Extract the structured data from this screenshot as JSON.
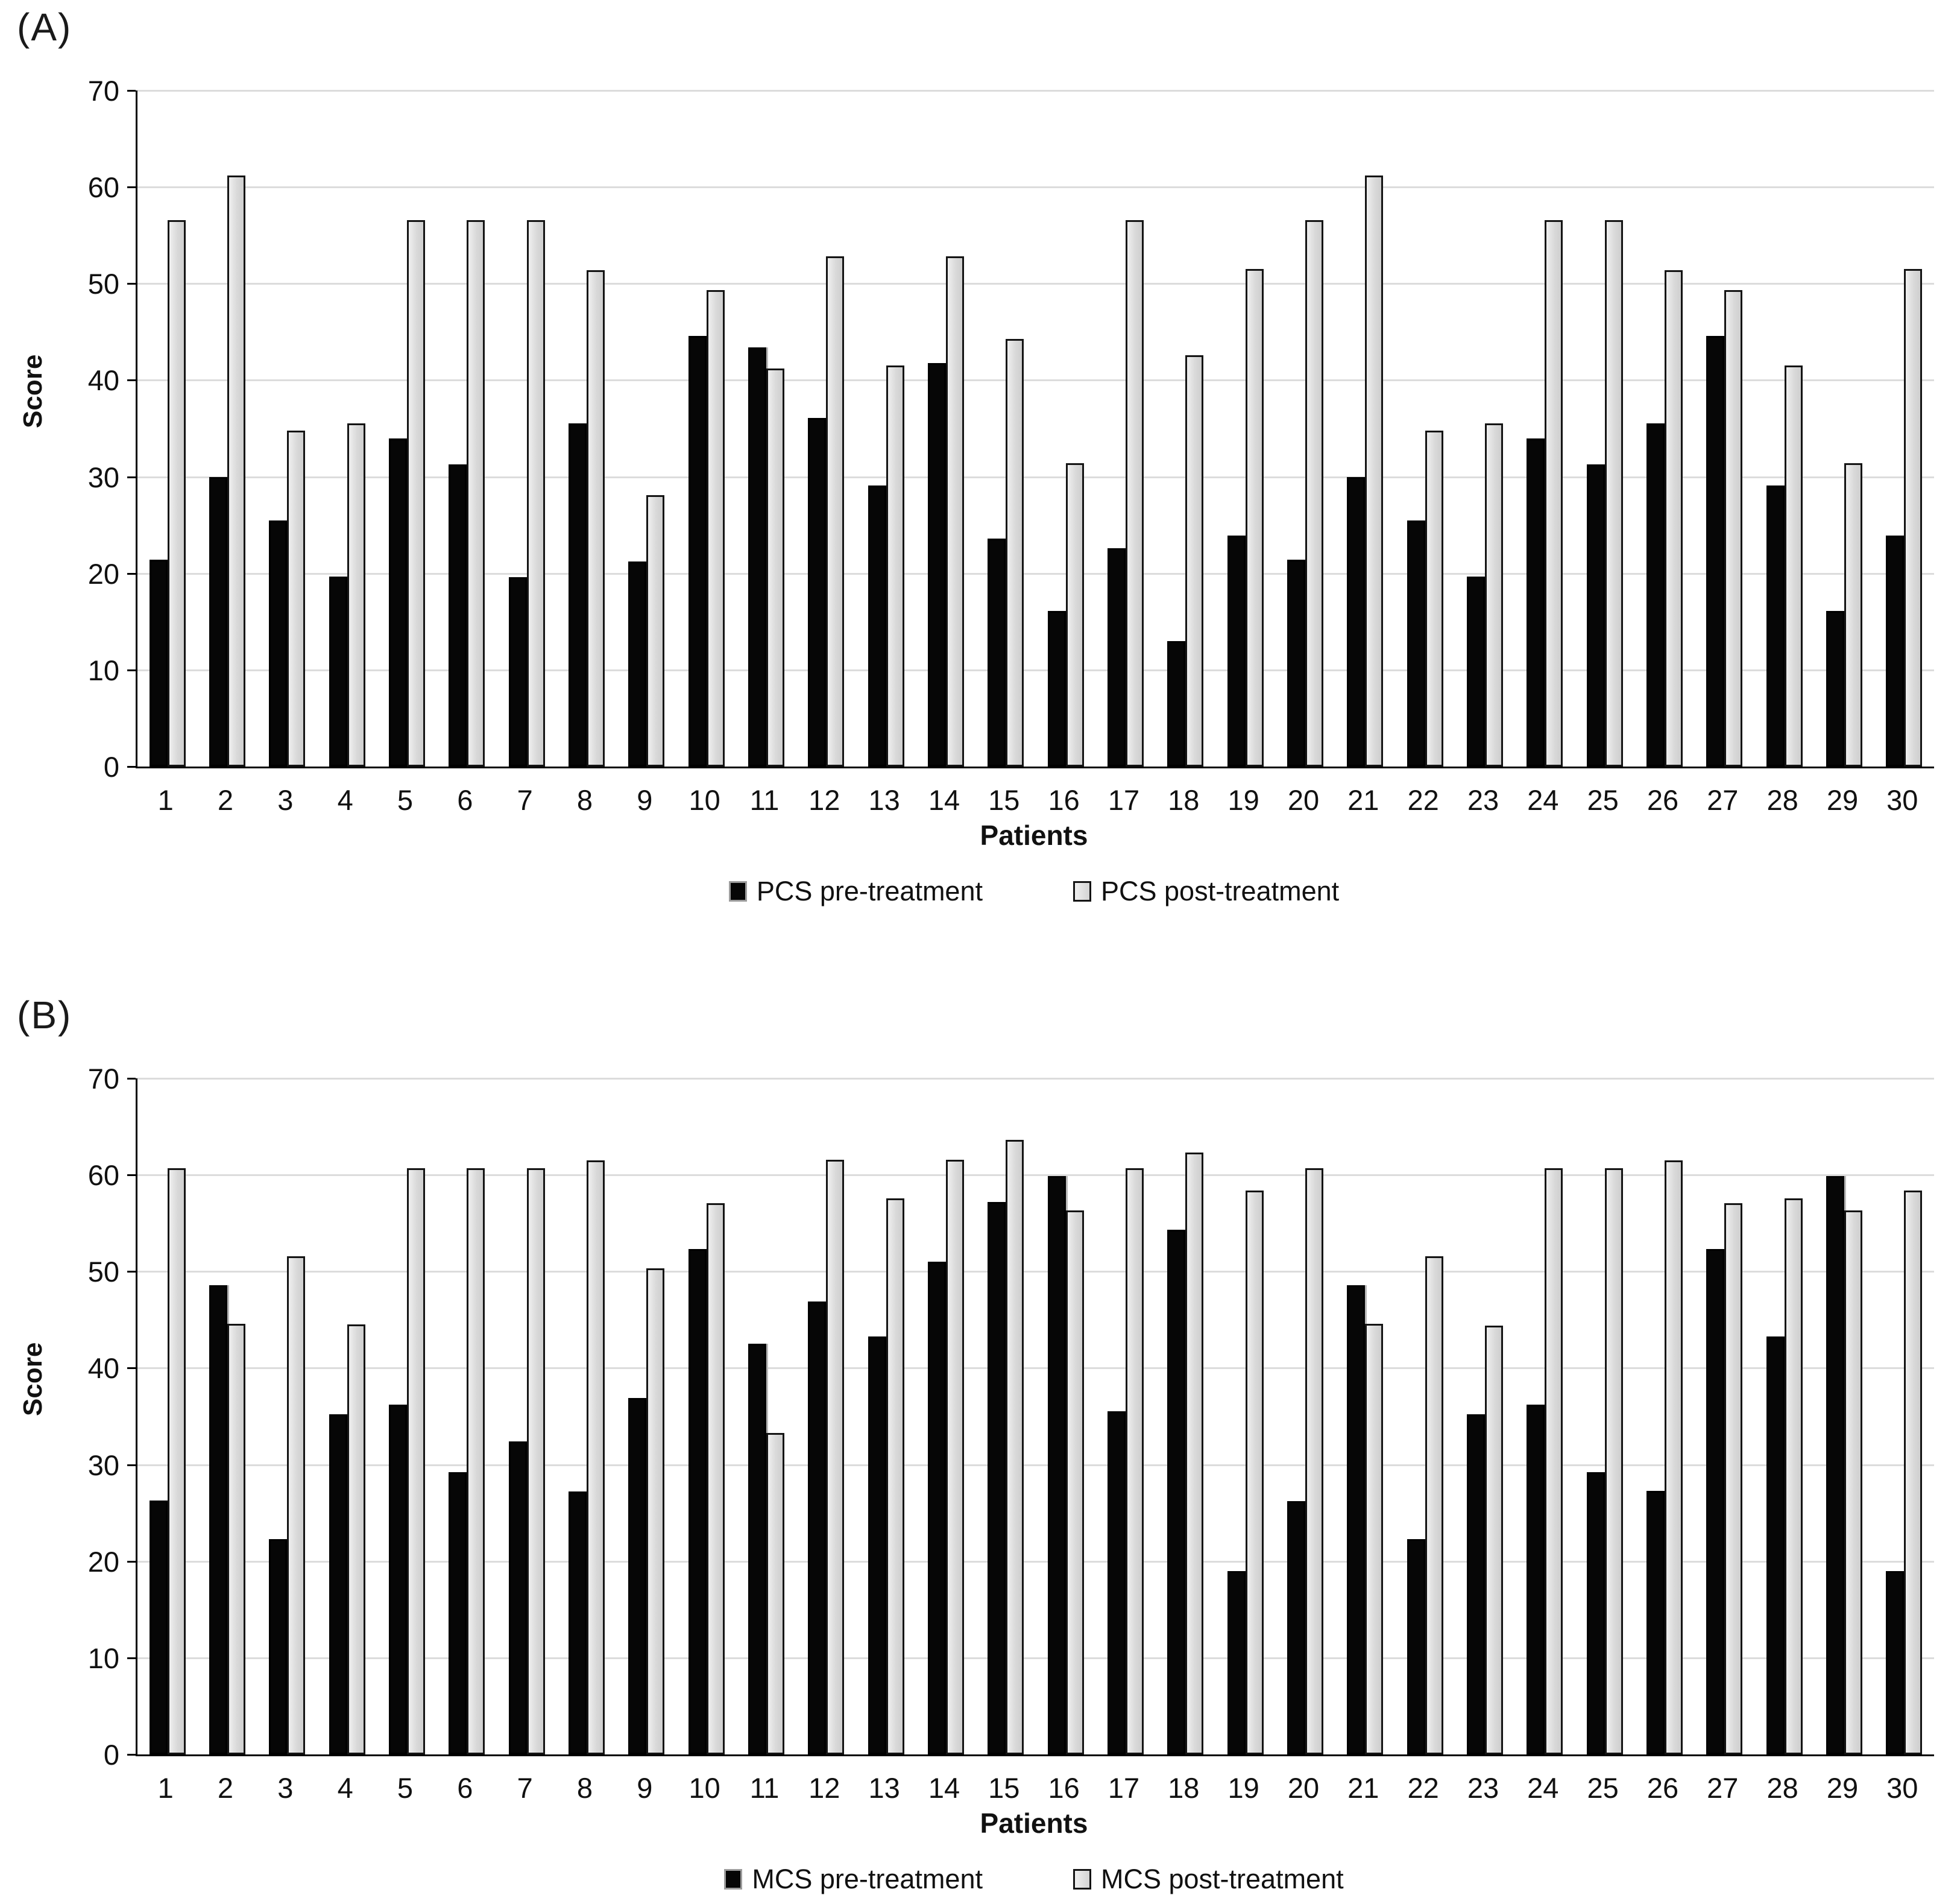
{
  "figure_background": "#ffffff",
  "chart_data": [
    {
      "type": "bar",
      "panel_label": "(A)",
      "title": "",
      "xlabel": "Patients",
      "ylabel": "Score",
      "ylim": [
        0,
        70
      ],
      "yticks": [
        0,
        10,
        20,
        30,
        40,
        50,
        60,
        70
      ],
      "grid": true,
      "legend_position": "bottom",
      "categories": [
        1,
        2,
        3,
        4,
        5,
        6,
        7,
        8,
        9,
        10,
        11,
        12,
        13,
        14,
        15,
        16,
        17,
        18,
        19,
        20,
        21,
        22,
        23,
        24,
        25,
        26,
        27,
        28,
        29,
        30
      ],
      "series": [
        {
          "key": "pre",
          "name": "PCS pre-treatment",
          "color": "#060606",
          "values": [
            21.4,
            30.0,
            25.5,
            19.7,
            34.0,
            31.3,
            19.6,
            35.5,
            21.2,
            44.6,
            43.4,
            36.1,
            29.1,
            41.8,
            23.6,
            16.1,
            22.6,
            13.0,
            23.9,
            21.4,
            30.0,
            25.5,
            19.7,
            34.0,
            31.3,
            35.5,
            44.6,
            29.1,
            16.1,
            23.9
          ]
        },
        {
          "key": "post",
          "name": "PCS post-treatment",
          "color": "#d9d9d9",
          "values": [
            56.6,
            61.2,
            34.8,
            35.5,
            56.6,
            56.6,
            56.6,
            51.4,
            28.1,
            49.3,
            41.2,
            52.8,
            41.5,
            52.8,
            44.3,
            31.4,
            56.6,
            42.6,
            51.5,
            56.6,
            61.2,
            34.8,
            35.5,
            56.6,
            56.6,
            51.4,
            49.3,
            41.5,
            31.4,
            51.5
          ]
        }
      ]
    },
    {
      "type": "bar",
      "panel_label": "(B)",
      "title": "",
      "xlabel": "Patients",
      "ylabel": "Score",
      "ylim": [
        0,
        70
      ],
      "yticks": [
        0,
        10,
        20,
        30,
        40,
        50,
        60,
        70
      ],
      "grid": true,
      "legend_position": "bottom",
      "categories": [
        1,
        2,
        3,
        4,
        5,
        6,
        7,
        8,
        9,
        10,
        11,
        12,
        13,
        14,
        15,
        16,
        17,
        18,
        19,
        20,
        21,
        22,
        23,
        24,
        25,
        26,
        27,
        28,
        29,
        30
      ],
      "series": [
        {
          "key": "pre",
          "name": "MCS pre-treatment",
          "color": "#060606",
          "values": [
            26.3,
            48.6,
            22.3,
            35.2,
            36.2,
            29.2,
            32.4,
            27.2,
            36.9,
            52.3,
            42.5,
            46.9,
            43.3,
            51.0,
            57.2,
            59.9,
            35.5,
            54.3,
            19.0,
            26.2,
            48.6,
            22.3,
            35.2,
            36.2,
            29.2,
            27.3,
            52.3,
            43.3,
            59.9,
            19.0
          ]
        },
        {
          "key": "post",
          "name": "MCS post-treatment",
          "color": "#d9d9d9",
          "values": [
            60.7,
            44.6,
            51.6,
            44.5,
            60.7,
            60.7,
            60.7,
            61.5,
            50.3,
            57.1,
            33.3,
            61.6,
            57.6,
            61.6,
            63.6,
            56.3,
            60.7,
            62.3,
            58.4,
            60.7,
            44.6,
            51.6,
            44.4,
            60.7,
            60.7,
            61.5,
            57.1,
            57.6,
            56.3,
            58.4
          ]
        }
      ]
    }
  ]
}
